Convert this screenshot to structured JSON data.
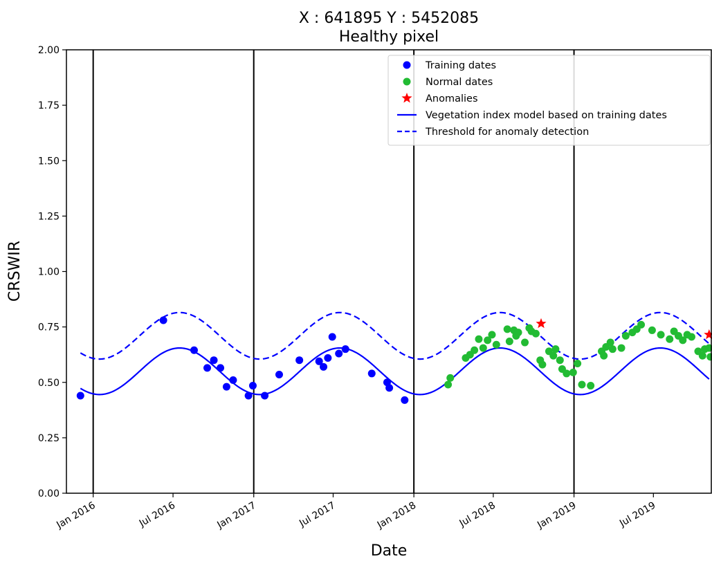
{
  "chart_data": {
    "type": "scatter",
    "title": "X : 641895   Y : 5452085",
    "subtitle": "Healthy pixel",
    "xlabel": "Date",
    "ylabel": "CRSWIR",
    "xlim": [
      "2015-11-01",
      "2019-11-10"
    ],
    "ylim": [
      0,
      2
    ],
    "x_ticks": [
      "2016-01-01",
      "2016-07-01",
      "2017-01-01",
      "2017-07-01",
      "2018-01-01",
      "2018-07-01",
      "2019-01-01",
      "2019-07-01"
    ],
    "x_tick_labels": [
      "Jan 2016",
      "Jul 2016",
      "Jan 2017",
      "Jul 2017",
      "Jan 2018",
      "Jul 2018",
      "Jan 2019",
      "Jul 2019"
    ],
    "y_ticks": [
      0.0,
      0.25,
      0.5,
      0.75,
      1.0,
      1.25,
      1.5,
      1.75,
      2.0
    ],
    "y_tick_labels": [
      "0.00",
      "0.25",
      "0.50",
      "0.75",
      "1.00",
      "1.25",
      "1.50",
      "1.75",
      "2.00"
    ],
    "vertical_lines": [
      "2016-01-01",
      "2017-01-01",
      "2018-01-01",
      "2019-01-01"
    ],
    "legend_position": "top-right",
    "grid": false,
    "series": [
      {
        "name": "Training dates",
        "kind": "scatter",
        "marker": "circle",
        "color": "#0000ff",
        "points": [
          [
            "2015-12-03",
            0.44
          ],
          [
            "2016-06-09",
            0.78
          ],
          [
            "2016-08-18",
            0.645
          ],
          [
            "2016-09-17",
            0.565
          ],
          [
            "2016-10-02",
            0.6
          ],
          [
            "2016-10-17",
            0.565
          ],
          [
            "2016-10-31",
            0.48
          ],
          [
            "2016-11-15",
            0.51
          ],
          [
            "2016-12-20",
            0.44
          ],
          [
            "2016-12-30",
            0.485
          ],
          [
            "2017-01-26",
            0.44
          ],
          [
            "2017-02-28",
            0.535
          ],
          [
            "2017-04-15",
            0.6
          ],
          [
            "2017-05-30",
            0.595
          ],
          [
            "2017-06-09",
            0.57
          ],
          [
            "2017-06-19",
            0.61
          ],
          [
            "2017-06-29",
            0.705
          ],
          [
            "2017-07-14",
            0.63
          ],
          [
            "2017-07-29",
            0.65
          ],
          [
            "2017-09-27",
            0.54
          ],
          [
            "2017-11-01",
            0.5
          ],
          [
            "2017-11-06",
            0.475
          ],
          [
            "2017-12-11",
            0.42
          ]
        ]
      },
      {
        "name": "Normal dates",
        "kind": "scatter",
        "marker": "circle",
        "color": "#22bb33",
        "points": [
          [
            "2018-03-20",
            0.49
          ],
          [
            "2018-03-25",
            0.52
          ],
          [
            "2018-04-29",
            0.61
          ],
          [
            "2018-05-09",
            0.625
          ],
          [
            "2018-05-19",
            0.645
          ],
          [
            "2018-05-29",
            0.695
          ],
          [
            "2018-06-08",
            0.655
          ],
          [
            "2018-06-18",
            0.69
          ],
          [
            "2018-06-28",
            0.715
          ],
          [
            "2018-07-08",
            0.67
          ],
          [
            "2018-08-02",
            0.74
          ],
          [
            "2018-08-07",
            0.685
          ],
          [
            "2018-08-17",
            0.735
          ],
          [
            "2018-08-22",
            0.71
          ],
          [
            "2018-08-27",
            0.725
          ],
          [
            "2018-09-11",
            0.68
          ],
          [
            "2018-09-21",
            0.745
          ],
          [
            "2018-09-26",
            0.73
          ],
          [
            "2018-10-06",
            0.72
          ],
          [
            "2018-10-16",
            0.6
          ],
          [
            "2018-10-21",
            0.58
          ],
          [
            "2018-11-05",
            0.64
          ],
          [
            "2018-11-15",
            0.62
          ],
          [
            "2018-11-20",
            0.65
          ],
          [
            "2018-11-30",
            0.6
          ],
          [
            "2018-12-05",
            0.56
          ],
          [
            "2018-12-15",
            0.54
          ],
          [
            "2018-12-30",
            0.545
          ],
          [
            "2019-01-09",
            0.585
          ],
          [
            "2019-01-19",
            0.49
          ],
          [
            "2019-02-08",
            0.485
          ],
          [
            "2019-03-05",
            0.64
          ],
          [
            "2019-03-10",
            0.62
          ],
          [
            "2019-03-15",
            0.66
          ],
          [
            "2019-03-25",
            0.68
          ],
          [
            "2019-03-30",
            0.65
          ],
          [
            "2019-04-19",
            0.655
          ],
          [
            "2019-04-29",
            0.71
          ],
          [
            "2019-05-14",
            0.725
          ],
          [
            "2019-05-24",
            0.74
          ],
          [
            "2019-06-03",
            0.76
          ],
          [
            "2019-06-28",
            0.735
          ],
          [
            "2019-07-18",
            0.715
          ],
          [
            "2019-08-07",
            0.695
          ],
          [
            "2019-08-17",
            0.73
          ],
          [
            "2019-08-27",
            0.71
          ],
          [
            "2019-09-06",
            0.69
          ],
          [
            "2019-09-16",
            0.715
          ],
          [
            "2019-09-26",
            0.705
          ],
          [
            "2019-10-11",
            0.64
          ],
          [
            "2019-10-21",
            0.62
          ],
          [
            "2019-10-26",
            0.65
          ],
          [
            "2019-11-05",
            0.655
          ],
          [
            "2019-11-08",
            0.615
          ]
        ]
      },
      {
        "name": "Anomalies",
        "kind": "scatter",
        "marker": "star",
        "color": "#ff0000",
        "points": [
          [
            "2018-10-18",
            0.765
          ],
          [
            "2019-11-05",
            0.715
          ]
        ]
      },
      {
        "name": "Vegetation index model based on training dates",
        "kind": "line",
        "style": "solid",
        "color": "#0000ff",
        "x_range": [
          "2015-12-03",
          "2019-11-05"
        ],
        "model": {
          "mean": 0.55,
          "amplitude": 0.105,
          "peak_date": "2016-07-16",
          "period_days": 365.25
        },
        "description_points": [
          [
            "2015-12-03",
            0.45
          ],
          [
            "2016-07-16",
            0.655
          ],
          [
            "2017-01-15",
            0.445
          ],
          [
            "2017-07-16",
            0.655
          ],
          [
            "2018-01-15",
            0.445
          ],
          [
            "2018-07-16",
            0.655
          ],
          [
            "2019-01-15",
            0.445
          ],
          [
            "2019-07-16",
            0.655
          ],
          [
            "2019-11-05",
            0.53
          ]
        ]
      },
      {
        "name": "Threshold for anomaly detection",
        "kind": "line",
        "style": "dashed",
        "color": "#0000ff",
        "x_range": [
          "2015-12-03",
          "2019-11-05"
        ],
        "model": {
          "mean": 0.71,
          "amplitude": 0.105,
          "peak_date": "2016-07-16",
          "period_days": 365.25
        },
        "description_points": [
          [
            "2015-12-03",
            0.6
          ],
          [
            "2016-07-16",
            0.815
          ],
          [
            "2017-01-15",
            0.605
          ],
          [
            "2017-07-16",
            0.815
          ],
          [
            "2018-01-15",
            0.605
          ],
          [
            "2018-07-16",
            0.815
          ],
          [
            "2019-01-15",
            0.605
          ],
          [
            "2019-07-16",
            0.815
          ],
          [
            "2019-11-05",
            0.695
          ]
        ]
      }
    ]
  }
}
